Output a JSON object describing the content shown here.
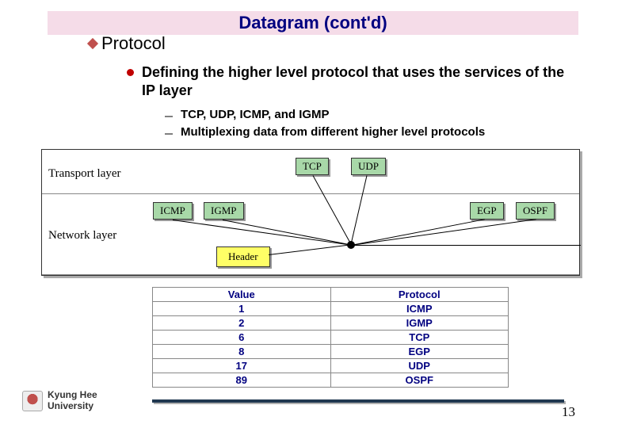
{
  "title": "Datagram (cont'd)",
  "section": "Protocol",
  "bullet": "Defining the higher level protocol that uses the services of the IP layer",
  "sub1": "TCP, UDP, ICMP, and IGMP",
  "sub2": "Multiplexing data from different higher level protocols",
  "diagram": {
    "transport_label": "Transport layer",
    "network_label": "Network layer",
    "boxes": {
      "tcp": "TCP",
      "udp": "UDP",
      "icmp": "ICMP",
      "igmp": "IGMP",
      "egp": "EGP",
      "ospf": "OSPF",
      "header": "Header"
    },
    "colors": {
      "green": "#a8d8a8",
      "yellow": "#ffff66",
      "border": "#333333",
      "shadow": "#999999"
    }
  },
  "table": {
    "headers": [
      "Value",
      "Protocol"
    ],
    "rows": [
      [
        "1",
        "ICMP"
      ],
      [
        "2",
        "IGMP"
      ],
      [
        "6",
        "TCP"
      ],
      [
        "8",
        "EGP"
      ],
      [
        "17",
        "UDP"
      ],
      [
        "89",
        "OSPF"
      ]
    ]
  },
  "footer": {
    "university": "Kyung Hee\nUniversity",
    "page": "13"
  },
  "style": {
    "title_bg": "#f5dce8",
    "title_color": "#000080",
    "accent_red": "#c00000",
    "rule_color": "#203850"
  }
}
